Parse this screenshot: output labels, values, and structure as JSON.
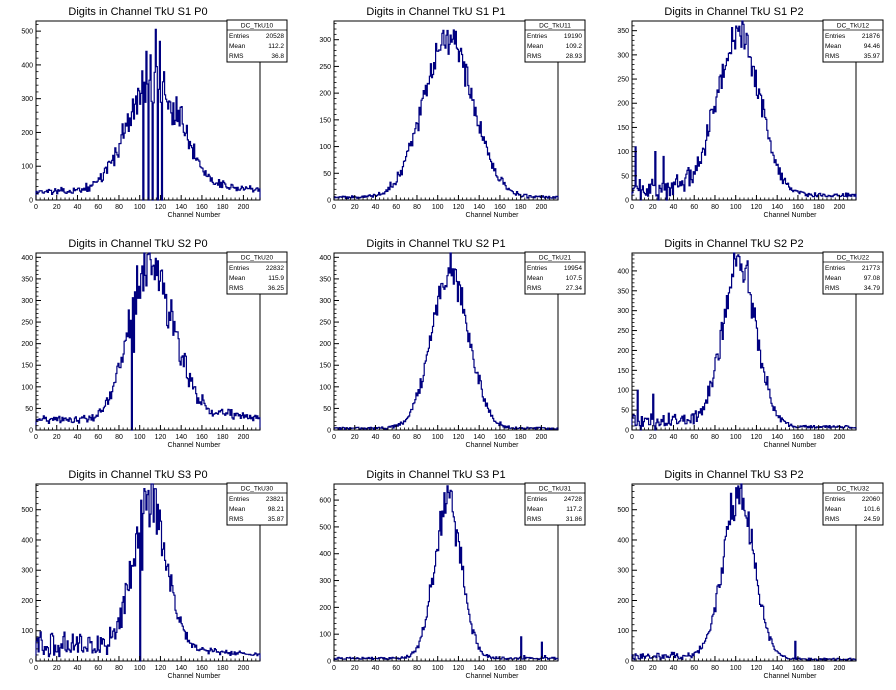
{
  "line_color": "#000080",
  "chart_data": [
    {
      "type": "histogram",
      "title": "Digits in Channel TkU S1 P0",
      "stats_name": "DC_TkU10",
      "stats": [
        {
          "label": "Entries",
          "value": "20528"
        },
        {
          "label": "Mean",
          "value": "112.2"
        },
        {
          "label": "RMS",
          "value": "36.8"
        }
      ],
      "xlabel": "Channel Number",
      "xlim": [
        0,
        216
      ],
      "ylim": [
        0,
        530
      ],
      "x_ticks": [
        0,
        20,
        40,
        60,
        80,
        100,
        120,
        140,
        160,
        180,
        200
      ],
      "y_ticks": [
        0,
        100,
        200,
        300,
        400,
        500
      ],
      "mean": 112,
      "sigma": 24,
      "peak": 330,
      "base": 22,
      "noise": 0.15,
      "tail": 0.3,
      "tailstart": 135,
      "lowtail": 0.05,
      "spikes": [
        [
          103,
          0
        ],
        [
          106,
          440
        ],
        [
          108,
          0
        ],
        [
          110,
          430
        ],
        [
          112,
          0
        ],
        [
          115,
          505
        ],
        [
          117,
          0
        ],
        [
          119,
          470
        ],
        [
          121,
          0
        ],
        [
          123,
          380
        ]
      ]
    },
    {
      "type": "histogram",
      "title": "Digits in Channel TkU S1 P1",
      "stats_name": "DC_TkU11",
      "stats": [
        {
          "label": "Entries",
          "value": "19190"
        },
        {
          "label": "Mean",
          "value": "109.2"
        },
        {
          "label": "RMS",
          "value": "28.93"
        }
      ],
      "xlabel": "Channel Number",
      "xlim": [
        0,
        216
      ],
      "ylim": [
        0,
        335
      ],
      "x_ticks": [
        0,
        20,
        40,
        60,
        80,
        100,
        120,
        140,
        160,
        180,
        200
      ],
      "y_ticks": [
        0,
        50,
        100,
        150,
        200,
        250,
        300
      ],
      "mean": 110,
      "sigma": 24,
      "peak": 300,
      "base": 5,
      "noise": 0.08,
      "tail": 0,
      "tailstart": 0,
      "lowtail": 0,
      "spikes": []
    },
    {
      "type": "histogram",
      "title": "Digits in Channel TkU S1 P2",
      "stats_name": "DC_TkU12",
      "stats": [
        {
          "label": "Entries",
          "value": "21876"
        },
        {
          "label": "Mean",
          "value": "94.46"
        },
        {
          "label": "RMS",
          "value": "35.97"
        }
      ],
      "xlabel": "Channel Number",
      "xlim": [
        0,
        216
      ],
      "ylim": [
        0,
        370
      ],
      "x_ticks": [
        0,
        20,
        40,
        60,
        80,
        100,
        120,
        140,
        160,
        180,
        200
      ],
      "y_ticks": [
        0,
        50,
        100,
        150,
        200,
        250,
        300,
        350
      ],
      "mean": 103,
      "sigma": 20,
      "peak": 340,
      "base": 10,
      "noise": 0.1,
      "tail": 0,
      "tailstart": 0,
      "lowtail": 0.25,
      "spikes": [
        [
          3,
          110
        ],
        [
          8,
          0
        ],
        [
          22,
          100
        ],
        [
          25,
          0
        ],
        [
          30,
          90
        ],
        [
          33,
          0
        ]
      ]
    },
    {
      "type": "histogram",
      "title": "Digits in Channel TkU S2 P0",
      "stats_name": "DC_TkU20",
      "stats": [
        {
          "label": "Entries",
          "value": "22832"
        },
        {
          "label": "Mean",
          "value": "115.9"
        },
        {
          "label": "RMS",
          "value": "36.25"
        }
      ],
      "xlabel": "Channel Number",
      "xlim": [
        0,
        216
      ],
      "ylim": [
        0,
        410
      ],
      "x_ticks": [
        0,
        20,
        40,
        60,
        80,
        100,
        120,
        140,
        160,
        180,
        200
      ],
      "y_ticks": [
        0,
        50,
        100,
        150,
        200,
        250,
        300,
        350,
        400
      ],
      "mean": 110,
      "sigma": 20,
      "peak": 370,
      "base": 20,
      "noise": 0.15,
      "tail": 0.3,
      "tailstart": 130,
      "lowtail": 0.05,
      "spikes": [
        [
          92,
          0
        ],
        [
          94,
          180
        ]
      ]
    },
    {
      "type": "histogram",
      "title": "Digits in Channel TkU S2 P1",
      "stats_name": "DC_TkU21",
      "stats": [
        {
          "label": "Entries",
          "value": "19954"
        },
        {
          "label": "Mean",
          "value": "107.5"
        },
        {
          "label": "RMS",
          "value": "27.34"
        }
      ],
      "xlabel": "Channel Number",
      "xlim": [
        0,
        216
      ],
      "ylim": [
        0,
        410
      ],
      "x_ticks": [
        0,
        20,
        40,
        60,
        80,
        100,
        120,
        140,
        160,
        180,
        200
      ],
      "y_ticks": [
        0,
        50,
        100,
        150,
        200,
        250,
        300,
        350,
        400
      ],
      "mean": 112,
      "sigma": 18,
      "peak": 365,
      "base": 4,
      "noise": 0.08,
      "tail": 0,
      "tailstart": 0,
      "lowtail": 0,
      "spikes": []
    },
    {
      "type": "histogram",
      "title": "Digits in Channel TkU S2 P2",
      "stats_name": "DC_TkU22",
      "stats": [
        {
          "label": "Entries",
          "value": "21773"
        },
        {
          "label": "Mean",
          "value": "97.08"
        },
        {
          "label": "RMS",
          "value": "34.79"
        }
      ],
      "xlabel": "Channel Number",
      "xlim": [
        0,
        216
      ],
      "ylim": [
        0,
        445
      ],
      "x_ticks": [
        0,
        20,
        40,
        60,
        80,
        100,
        120,
        140,
        160,
        180,
        200
      ],
      "y_ticks": [
        0,
        50,
        100,
        150,
        200,
        250,
        300,
        350,
        400
      ],
      "mean": 104,
      "sigma": 16,
      "peak": 410,
      "base": 8,
      "noise": 0.1,
      "tail": 0,
      "tailstart": 0,
      "lowtail": 0.2,
      "spikes": [
        [
          5,
          100
        ],
        [
          8,
          0
        ],
        [
          20,
          90
        ],
        [
          22,
          0
        ]
      ]
    },
    {
      "type": "histogram",
      "title": "Digits in Channel TkU S3 P0",
      "stats_name": "DC_TkU30",
      "stats": [
        {
          "label": "Entries",
          "value": "23821"
        },
        {
          "label": "Mean",
          "value": "98.21"
        },
        {
          "label": "RMS",
          "value": "35.87"
        }
      ],
      "xlabel": "Channel Number",
      "xlim": [
        0,
        216
      ],
      "ylim": [
        0,
        585
      ],
      "x_ticks": [
        0,
        20,
        40,
        60,
        80,
        100,
        120,
        140,
        160,
        180,
        200
      ],
      "y_ticks": [
        0,
        100,
        200,
        300,
        400,
        500
      ],
      "mean": 110,
      "sigma": 15,
      "peak": 530,
      "base": 15,
      "noise": 0.15,
      "tail": 0.15,
      "tailstart": 130,
      "lowtail": 0.4,
      "spikes": [
        [
          100,
          0
        ],
        [
          102,
          300
        ]
      ]
    },
    {
      "type": "histogram",
      "title": "Digits in Channel TkU S3 P1",
      "stats_name": "DC_TkU31",
      "stats": [
        {
          "label": "Entries",
          "value": "24728"
        },
        {
          "label": "Mean",
          "value": "117.2"
        },
        {
          "label": "RMS",
          "value": "31.86"
        }
      ],
      "xlabel": "Channel Number",
      "xlim": [
        0,
        216
      ],
      "ylim": [
        0,
        660
      ],
      "x_ticks": [
        0,
        20,
        40,
        60,
        80,
        100,
        120,
        140,
        160,
        180,
        200
      ],
      "y_ticks": [
        0,
        100,
        200,
        300,
        400,
        500,
        600
      ],
      "mean": 110,
      "sigma": 13,
      "peak": 590,
      "base": 10,
      "noise": 0.12,
      "tail": 0,
      "tailstart": 0,
      "lowtail": 0,
      "spikes": [
        [
          180,
          90
        ],
        [
          183,
          20
        ],
        [
          200,
          70
        ],
        [
          203,
          20
        ]
      ]
    },
    {
      "type": "histogram",
      "title": "Digits in Channel TkU S3 P2",
      "stats_name": "DC_TkU32",
      "stats": [
        {
          "label": "Entries",
          "value": "22060"
        },
        {
          "label": "Mean",
          "value": "101.6"
        },
        {
          "label": "RMS",
          "value": "24.59"
        }
      ],
      "xlabel": "Channel Number",
      "xlim": [
        0,
        216
      ],
      "ylim": [
        0,
        585
      ],
      "x_ticks": [
        0,
        20,
        40,
        60,
        80,
        100,
        120,
        140,
        160,
        180,
        200
      ],
      "y_ticks": [
        0,
        100,
        200,
        300,
        400,
        500
      ],
      "mean": 103,
      "sigma": 15,
      "peak": 545,
      "base": 6,
      "noise": 0.1,
      "tail": 0,
      "tailstart": 0,
      "lowtail": 0.1,
      "spikes": [
        [
          157,
          65
        ],
        [
          159,
          10
        ]
      ]
    }
  ]
}
